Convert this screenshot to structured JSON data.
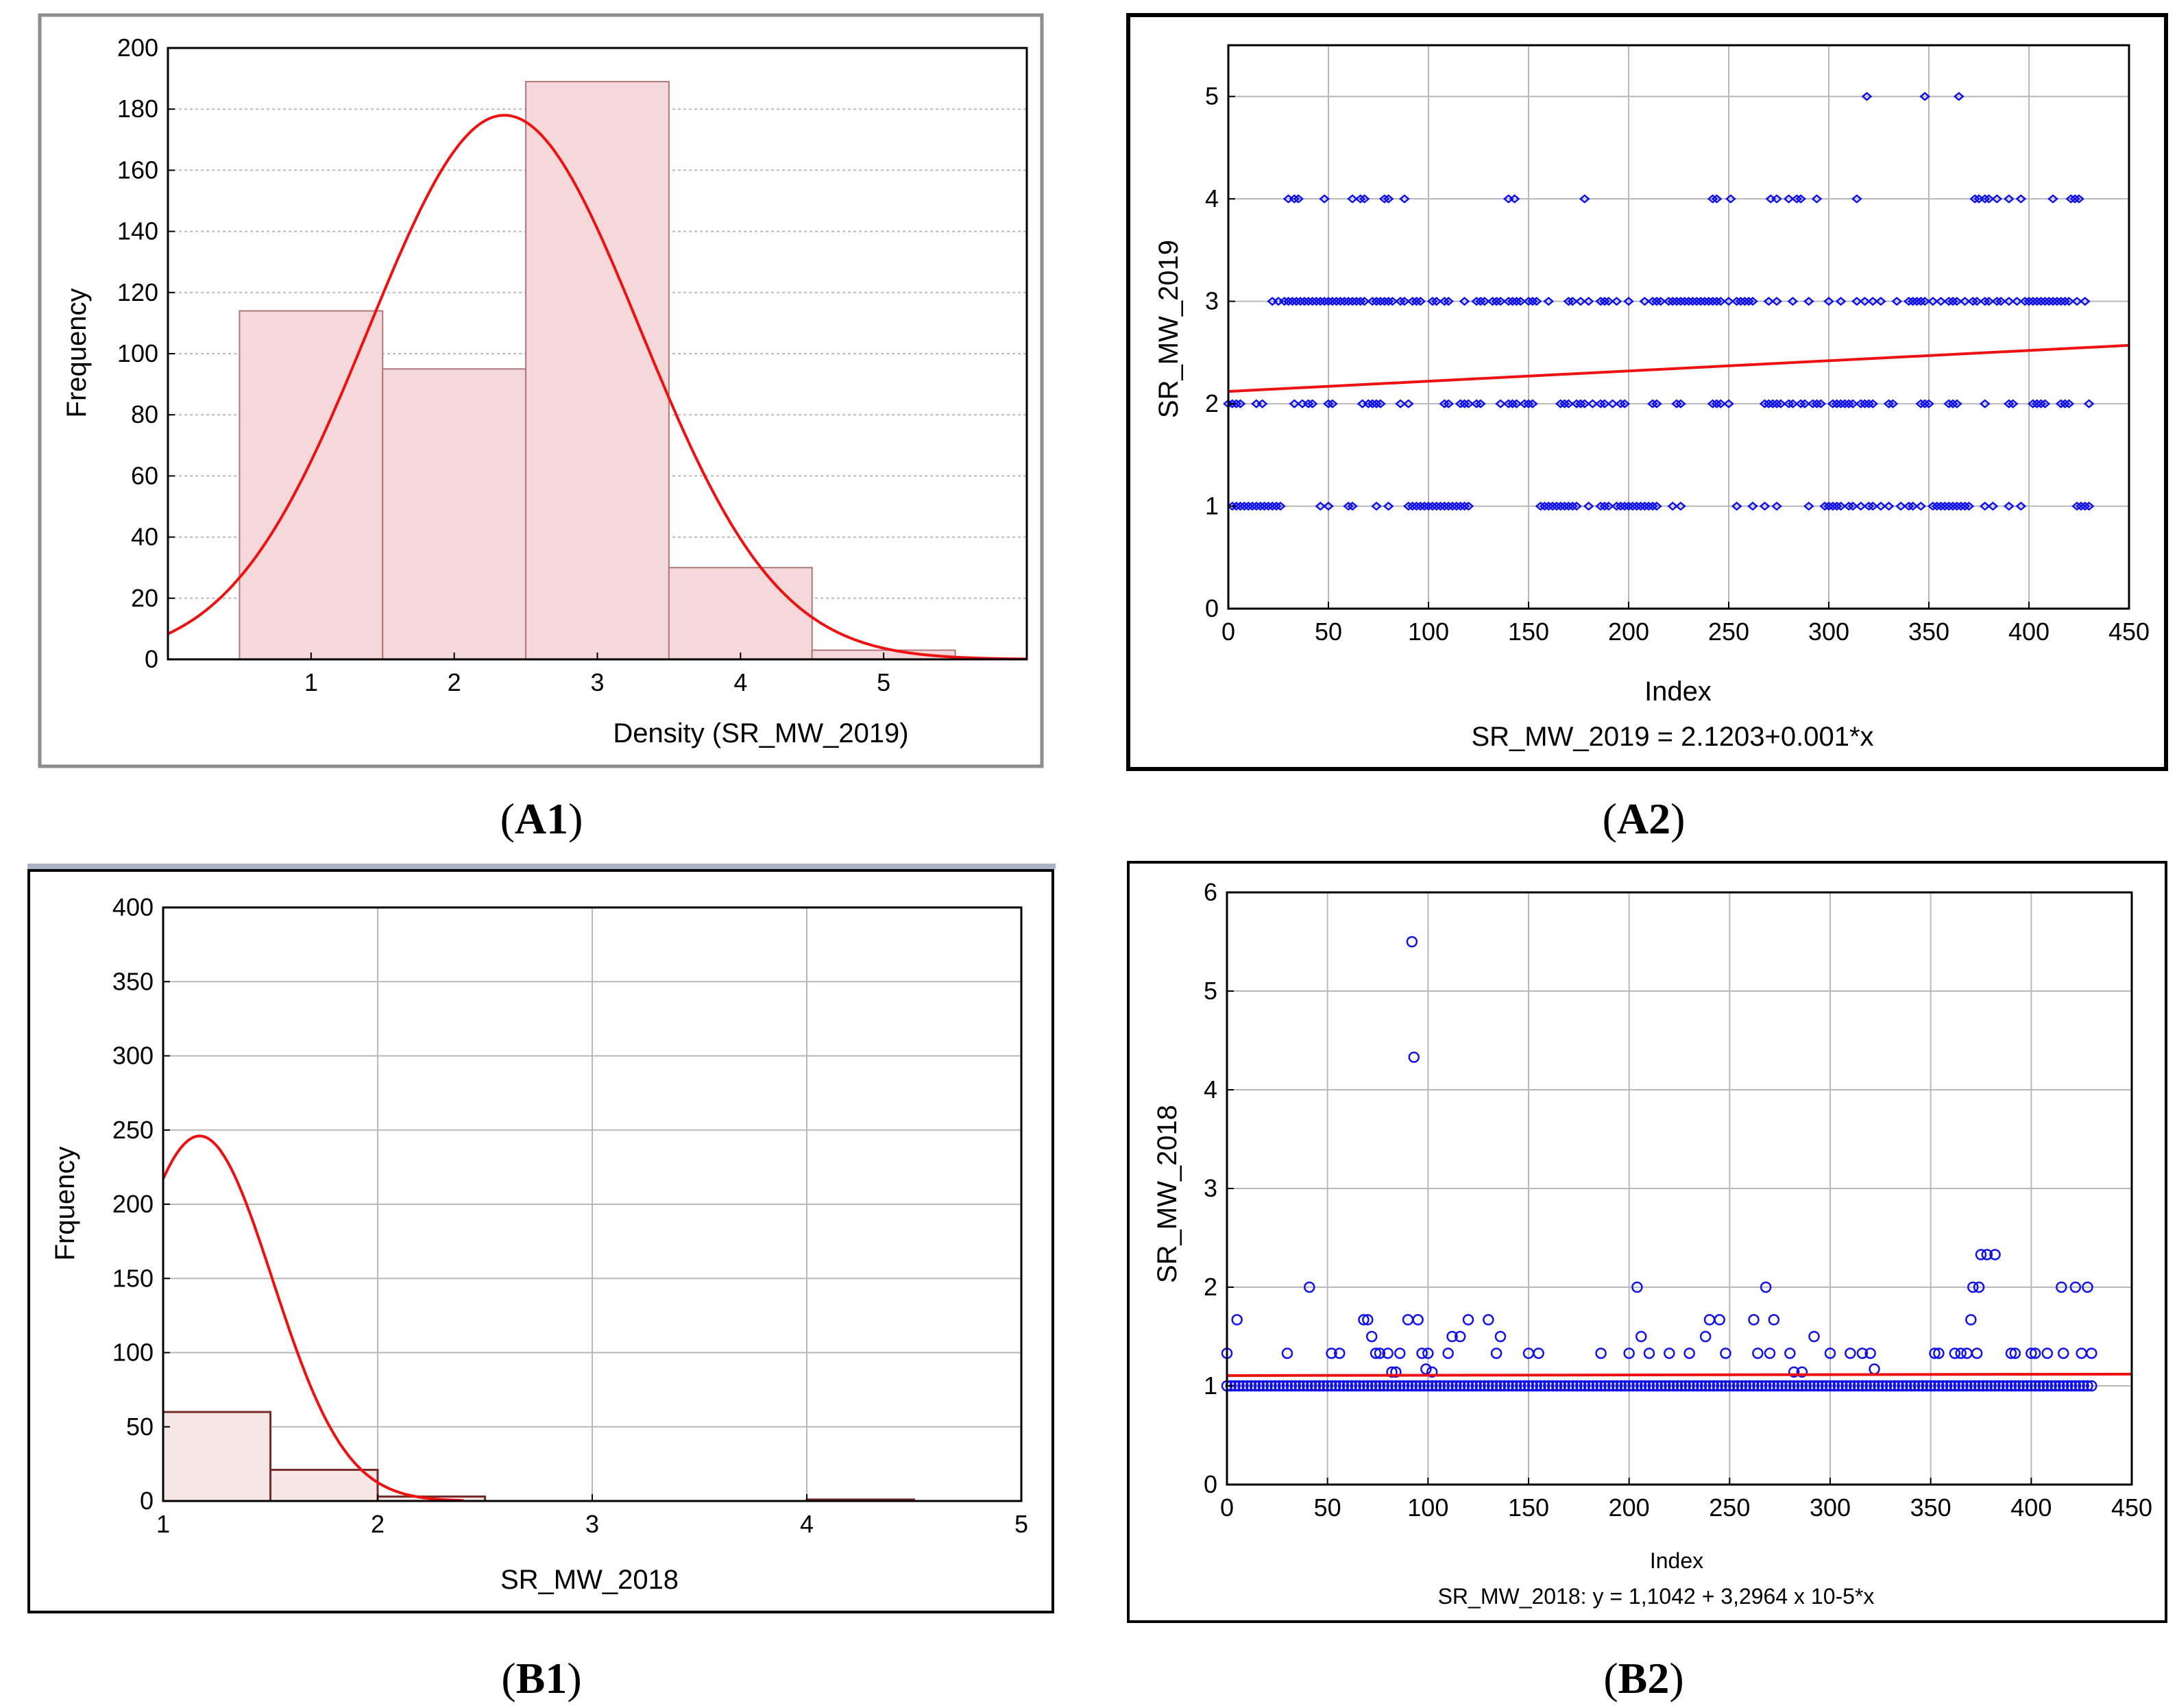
{
  "captions": {
    "a1": "A1",
    "a2": "A2",
    "b1": "B1",
    "b2": "B2"
  },
  "colors": {
    "hist_fill_a1": "#f4d8da",
    "hist_stroke_a1": "#b07878",
    "hist_fill_b1": "#f6e6e6",
    "hist_stroke_b1": "#7a2a2a",
    "curve": "#ee1111",
    "points": "#1111ee",
    "grid": "#b8b8b8"
  },
  "chart_data": [
    {
      "id": "A1",
      "type": "bar",
      "categories": [
        "1",
        "2",
        "3",
        "4",
        "5"
      ],
      "values": [
        114,
        95,
        189,
        30,
        3
      ],
      "xlabel": "Density (SR_MW_2019)",
      "ylabel": "Frequency",
      "xlim": [
        0,
        6
      ],
      "ylim": [
        0,
        200
      ],
      "xticks": [
        1,
        2,
        3,
        4,
        5
      ],
      "yticks": [
        0,
        20,
        40,
        60,
        80,
        100,
        120,
        140,
        160,
        180,
        200
      ],
      "normal_curve": {
        "mean": 2.35,
        "sd": 0.95,
        "peak": 178
      },
      "grid": true
    },
    {
      "id": "A2",
      "type": "scatter",
      "xlabel": "Index",
      "ylabel": "SR_MW_2019",
      "equation": "SR_MW_2019 = 2.1203+0.001*x",
      "xlim": [
        0,
        450
      ],
      "ylim": [
        0,
        5.5
      ],
      "xticks": [
        0,
        50,
        100,
        150,
        200,
        250,
        300,
        350,
        400,
        450
      ],
      "yticks": [
        0,
        1,
        2,
        3,
        4,
        5
      ],
      "regression": {
        "intercept": 2.1203,
        "slope": 0.001
      },
      "series": [
        {
          "name": "y=5",
          "y": 5,
          "x": [
            319,
            348,
            365
          ]
        },
        {
          "name": "y=4",
          "y": 4,
          "x": [
            30,
            33,
            35,
            48,
            62,
            66,
            68,
            78,
            80,
            88,
            140,
            143,
            178,
            242,
            244,
            251,
            271,
            274,
            280,
            284,
            286,
            294,
            314,
            373,
            375,
            378,
            380,
            384,
            390,
            396,
            412,
            421,
            423,
            425
          ]
        },
        {
          "name": "y=3",
          "y": 3,
          "x": [
            22,
            25,
            28,
            30,
            32,
            34,
            36,
            38,
            40,
            42,
            44,
            46,
            48,
            50,
            52,
            54,
            56,
            58,
            60,
            62,
            64,
            66,
            68,
            72,
            74,
            76,
            78,
            80,
            82,
            86,
            88,
            92,
            94,
            96,
            102,
            104,
            108,
            110,
            118,
            124,
            126,
            128,
            132,
            134,
            136,
            140,
            142,
            144,
            146,
            150,
            152,
            154,
            160,
            170,
            172,
            176,
            180,
            186,
            188,
            190,
            194,
            200,
            208,
            212,
            214,
            216,
            220,
            222,
            224,
            226,
            228,
            230,
            232,
            234,
            236,
            238,
            240,
            242,
            244,
            246,
            250,
            254,
            256,
            258,
            260,
            262,
            270,
            274,
            282,
            290,
            300,
            306,
            314,
            318,
            322,
            326,
            334,
            340,
            342,
            344,
            346,
            348,
            352,
            356,
            360,
            362,
            364,
            368,
            372,
            374,
            378,
            380,
            384,
            386,
            390,
            394,
            398,
            400,
            402,
            404,
            406,
            408,
            410,
            412,
            414,
            416,
            418,
            420,
            424,
            428
          ]
        },
        {
          "name": "y=2",
          "y": 2,
          "x": [
            0,
            2,
            4,
            6,
            14,
            17,
            33,
            37,
            40,
            42,
            50,
            52,
            67,
            70,
            72,
            74,
            76,
            86,
            90,
            108,
            110,
            116,
            118,
            120,
            124,
            126,
            136,
            140,
            142,
            144,
            148,
            150,
            152,
            166,
            168,
            170,
            174,
            176,
            178,
            182,
            186,
            188,
            192,
            196,
            198,
            212,
            214,
            224,
            226,
            242,
            244,
            246,
            250,
            268,
            270,
            272,
            274,
            276,
            280,
            282,
            286,
            288,
            292,
            294,
            296,
            302,
            304,
            306,
            308,
            310,
            312,
            316,
            318,
            320,
            322,
            330,
            332,
            346,
            348,
            350,
            360,
            362,
            364,
            378,
            390,
            392,
            402,
            404,
            406,
            408,
            416,
            418,
            420,
            430
          ]
        },
        {
          "name": "y=1",
          "y": 1,
          "x": [
            2,
            4,
            6,
            8,
            10,
            12,
            14,
            16,
            18,
            20,
            22,
            24,
            26,
            46,
            50,
            60,
            62,
            74,
            80,
            90,
            92,
            94,
            96,
            98,
            100,
            102,
            104,
            106,
            108,
            110,
            112,
            114,
            116,
            118,
            120,
            156,
            158,
            160,
            162,
            164,
            166,
            168,
            170,
            172,
            174,
            180,
            186,
            188,
            190,
            194,
            196,
            198,
            200,
            202,
            204,
            206,
            208,
            210,
            212,
            214,
            222,
            226,
            254,
            262,
            268,
            274,
            290,
            298,
            300,
            302,
            304,
            306,
            310,
            312,
            316,
            320,
            322,
            326,
            330,
            336,
            340,
            342,
            346,
            352,
            354,
            356,
            358,
            360,
            362,
            364,
            366,
            368,
            370,
            378,
            382,
            390,
            396,
            424,
            426,
            428,
            430
          ]
        }
      ],
      "grid": true
    },
    {
      "id": "B1",
      "type": "bar",
      "bins": [
        [
          1.0,
          1.5
        ],
        [
          1.5,
          2.0
        ],
        [
          2.0,
          2.5
        ],
        [
          4.0,
          4.5
        ]
      ],
      "values": [
        60,
        21,
        3,
        1
      ],
      "xlabel": "SR_MW_2018",
      "ylabel": "Frquency",
      "xlim": [
        1,
        5
      ],
      "ylim": [
        0,
        400
      ],
      "xticks": [
        1,
        2,
        3,
        4,
        5
      ],
      "yticks": [
        0,
        50,
        100,
        150,
        200,
        250,
        300,
        350,
        400
      ],
      "normal_curve": {
        "mean": 1.17,
        "sd": 0.34,
        "peak": 246
      },
      "grid": true
    },
    {
      "id": "B2",
      "type": "scatter",
      "xlabel": "Index",
      "ylabel": "SR_MW_2018",
      "equation": "SR_MW_2018:   y = 1,1042 + 3,2964 x 10-5*x",
      "xlim": [
        0,
        450
      ],
      "ylim": [
        0,
        6
      ],
      "xticks": [
        0,
        50,
        100,
        150,
        200,
        250,
        300,
        350,
        400,
        450
      ],
      "yticks": [
        0,
        1,
        2,
        3,
        4,
        5,
        6
      ],
      "regression": {
        "intercept": 1.1042,
        "slope": 3.2964e-05
      },
      "baseline": {
        "y": 1,
        "x_from": 0,
        "x_to": 430,
        "step": 2
      },
      "points": [
        [
          0,
          1.33
        ],
        [
          5,
          1.67
        ],
        [
          30,
          1.33
        ],
        [
          41,
          2.0
        ],
        [
          52,
          1.33
        ],
        [
          56,
          1.33
        ],
        [
          68,
          1.67
        ],
        [
          70,
          1.67
        ],
        [
          72,
          1.5
        ],
        [
          74,
          1.33
        ],
        [
          76,
          1.33
        ],
        [
          80,
          1.33
        ],
        [
          82,
          1.14
        ],
        [
          84,
          1.14
        ],
        [
          86,
          1.33
        ],
        [
          90,
          1.67
        ],
        [
          92,
          5.5
        ],
        [
          93,
          4.33
        ],
        [
          95,
          1.67
        ],
        [
          97,
          1.33
        ],
        [
          99,
          1.17
        ],
        [
          100,
          1.33
        ],
        [
          102,
          1.14
        ],
        [
          110,
          1.33
        ],
        [
          112,
          1.5
        ],
        [
          116,
          1.5
        ],
        [
          120,
          1.67
        ],
        [
          130,
          1.67
        ],
        [
          134,
          1.33
        ],
        [
          136,
          1.5
        ],
        [
          150,
          1.33
        ],
        [
          155,
          1.33
        ],
        [
          186,
          1.33
        ],
        [
          200,
          1.33
        ],
        [
          204,
          2.0
        ],
        [
          206,
          1.5
        ],
        [
          210,
          1.33
        ],
        [
          220,
          1.33
        ],
        [
          230,
          1.33
        ],
        [
          238,
          1.5
        ],
        [
          240,
          1.67
        ],
        [
          245,
          1.67
        ],
        [
          248,
          1.33
        ],
        [
          262,
          1.67
        ],
        [
          264,
          1.33
        ],
        [
          268,
          2.0
        ],
        [
          270,
          1.33
        ],
        [
          272,
          1.67
        ],
        [
          280,
          1.33
        ],
        [
          282,
          1.14
        ],
        [
          286,
          1.14
        ],
        [
          292,
          1.5
        ],
        [
          300,
          1.33
        ],
        [
          310,
          1.33
        ],
        [
          316,
          1.33
        ],
        [
          320,
          1.33
        ],
        [
          322,
          1.17
        ],
        [
          352,
          1.33
        ],
        [
          354,
          1.33
        ],
        [
          362,
          1.33
        ],
        [
          365,
          1.33
        ],
        [
          368,
          1.33
        ],
        [
          370,
          1.67
        ],
        [
          371,
          2.0
        ],
        [
          373,
          1.33
        ],
        [
          374,
          2.0
        ],
        [
          375,
          2.33
        ],
        [
          378,
          2.33
        ],
        [
          382,
          2.33
        ],
        [
          390,
          1.33
        ],
        [
          392,
          1.33
        ],
        [
          400,
          1.33
        ],
        [
          402,
          1.33
        ],
        [
          408,
          1.33
        ],
        [
          415,
          2.0
        ],
        [
          416,
          1.33
        ],
        [
          422,
          2.0
        ],
        [
          425,
          1.33
        ],
        [
          428,
          2.0
        ],
        [
          430,
          1.33
        ]
      ],
      "grid": true
    }
  ]
}
